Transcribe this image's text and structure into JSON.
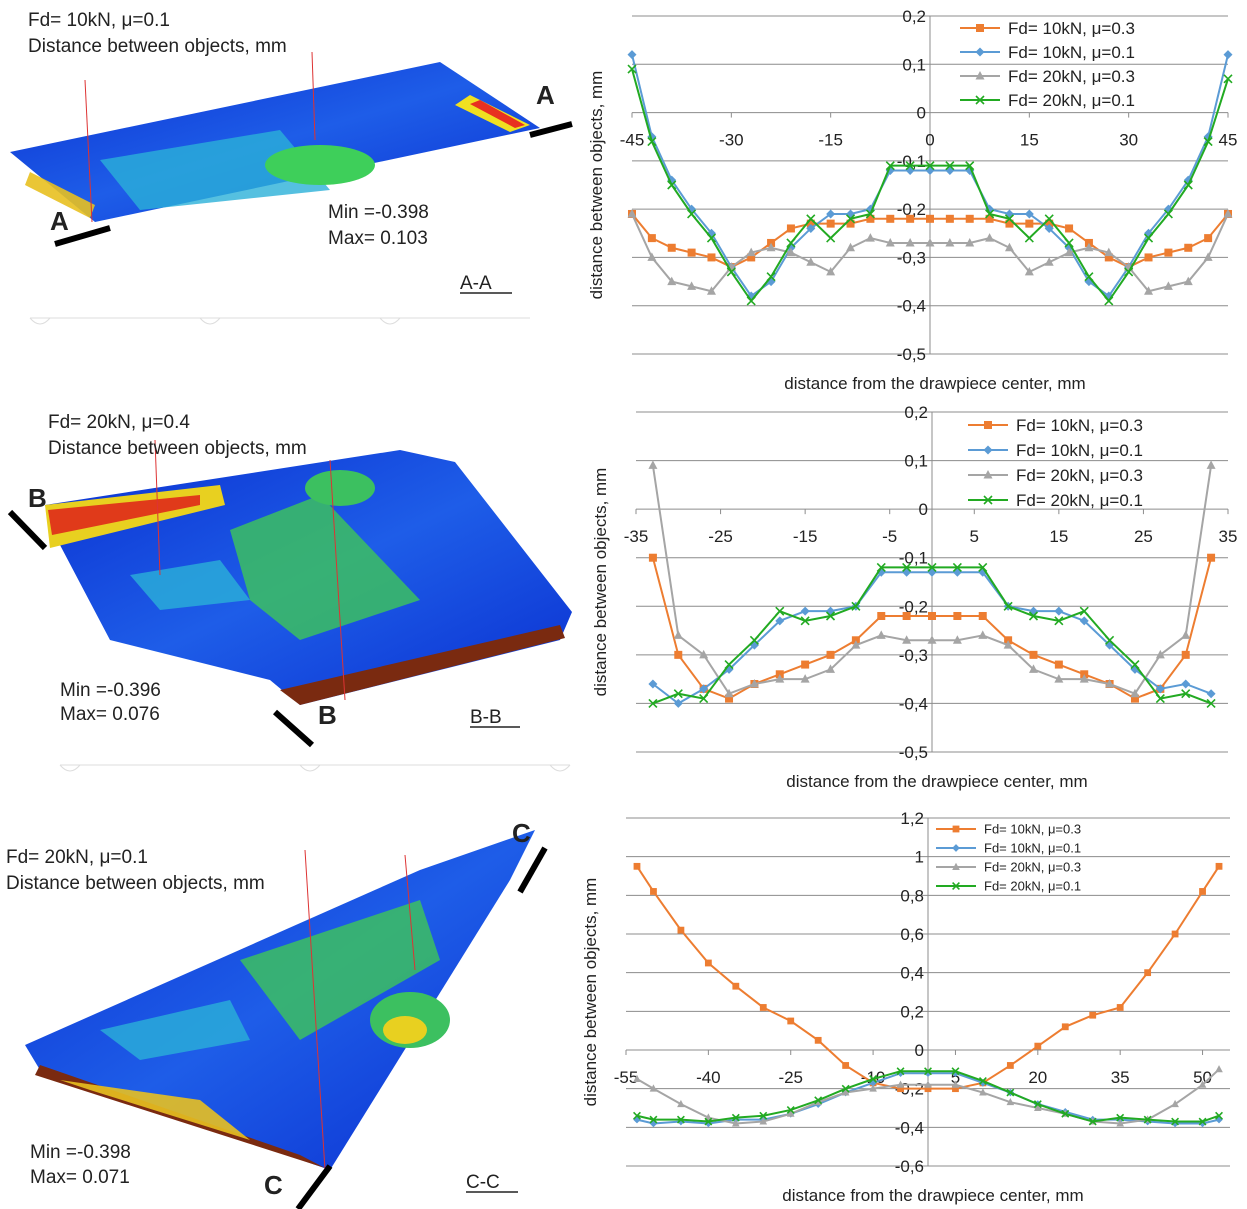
{
  "panels": [
    {
      "lines": [
        "Fd= 10kN, μ=0.1",
        "Distance between objects, mm"
      ],
      "min": "Min =-0.398",
      "max": "Max= 0.103",
      "section": "A-A",
      "cut": "A"
    },
    {
      "lines": [
        "Fd= 20kN, μ=0.4",
        "Distance between objects, mm"
      ],
      "min": "Min =-0.396",
      "max": "Max= 0.076",
      "section": "B-B",
      "cut": "B"
    },
    {
      "lines": [
        "Fd= 20kN, μ=0.1",
        "Distance between objects, mm"
      ],
      "min": "Min =-0.398",
      "max": "Max= 0.071",
      "section": "C-C",
      "cut": "C"
    }
  ],
  "chart_data": [
    {
      "type": "line",
      "xlabel": "distance from the drawpiece center, mm",
      "ylabel": "distance between objects, mm",
      "xlim": [
        -45,
        45
      ],
      "xticks": [
        -45,
        -30,
        -15,
        0,
        15,
        30,
        45
      ],
      "ylim": [
        -0.5,
        0.2
      ],
      "yticks": [
        {
          "value": 0.2,
          "label": "0,2"
        },
        {
          "value": 0.1,
          "label": "0,1"
        },
        0,
        {
          "value": -0.1,
          "label": "-0,1"
        },
        {
          "value": -0.2,
          "label": "-0,2"
        },
        {
          "value": -0.3,
          "label": "-0,3"
        },
        {
          "value": -0.4,
          "label": "-0,4"
        },
        {
          "value": -0.5,
          "label": "-0,5"
        }
      ],
      "grid": true,
      "legend": "upper right",
      "x": [
        -45,
        -42,
        -39,
        -36,
        -33,
        -30,
        -27,
        -24,
        -21,
        -18,
        -15,
        -12,
        -9,
        -6,
        -3,
        0,
        3,
        6,
        9,
        12,
        15,
        18,
        21,
        24,
        27,
        30,
        33,
        36,
        39,
        42,
        45
      ],
      "series": [
        {
          "name": "Fd= 10kN, μ=0.3",
          "color": "#ed7d31",
          "marker": "square",
          "values": [
            -0.21,
            -0.26,
            -0.28,
            -0.29,
            -0.3,
            -0.32,
            -0.3,
            -0.27,
            -0.24,
            -0.23,
            -0.23,
            -0.23,
            -0.22,
            -0.22,
            -0.22,
            -0.22,
            -0.22,
            -0.22,
            -0.22,
            -0.23,
            -0.23,
            -0.23,
            -0.24,
            -0.27,
            -0.3,
            -0.32,
            -0.3,
            -0.29,
            -0.28,
            -0.26,
            -0.21
          ]
        },
        {
          "name": "Fd= 10kN, μ=0.1",
          "color": "#5b9bd5",
          "marker": "diamond",
          "values": [
            0.12,
            -0.05,
            -0.14,
            -0.2,
            -0.25,
            -0.32,
            -0.38,
            -0.35,
            -0.28,
            -0.24,
            -0.21,
            -0.21,
            -0.2,
            -0.12,
            -0.12,
            -0.12,
            -0.12,
            -0.12,
            -0.2,
            -0.21,
            -0.21,
            -0.24,
            -0.28,
            -0.35,
            -0.38,
            -0.32,
            -0.25,
            -0.2,
            -0.14,
            -0.05,
            0.12
          ]
        },
        {
          "name": "Fd= 20kN, μ=0.3",
          "color": "#a5a5a5",
          "marker": "triangle",
          "values": [
            -0.21,
            -0.3,
            -0.35,
            -0.36,
            -0.37,
            -0.32,
            -0.29,
            -0.28,
            -0.29,
            -0.31,
            -0.33,
            -0.28,
            -0.26,
            -0.27,
            -0.27,
            -0.27,
            -0.27,
            -0.27,
            -0.26,
            -0.28,
            -0.33,
            -0.31,
            -0.29,
            -0.28,
            -0.29,
            -0.32,
            -0.37,
            -0.36,
            -0.35,
            -0.3,
            -0.21
          ]
        },
        {
          "name": "Fd= 20kN, μ=0.1",
          "color": "#22aa22",
          "marker": "x",
          "values": [
            0.09,
            -0.06,
            -0.15,
            -0.21,
            -0.26,
            -0.33,
            -0.39,
            -0.34,
            -0.27,
            -0.22,
            -0.26,
            -0.22,
            -0.21,
            -0.11,
            -0.11,
            -0.11,
            -0.11,
            -0.11,
            -0.21,
            -0.22,
            -0.26,
            -0.22,
            -0.27,
            -0.34,
            -0.39,
            -0.33,
            -0.26,
            -0.21,
            -0.15,
            -0.06,
            0.07
          ]
        }
      ]
    },
    {
      "type": "line",
      "xlabel": "distance from the drawpiece center, mm",
      "ylabel": "distance between objects, mm",
      "xlim": [
        -35,
        35
      ],
      "xticks": [
        -35,
        -25,
        -15,
        -5,
        5,
        15,
        25,
        35
      ],
      "ylim": [
        -0.5,
        0.2
      ],
      "yticks": [
        {
          "value": 0.2,
          "label": "0,2"
        },
        {
          "value": 0.1,
          "label": "0,1"
        },
        0,
        {
          "value": -0.1,
          "label": "-0,1"
        },
        {
          "value": -0.2,
          "label": "-0,2"
        },
        {
          "value": -0.3,
          "label": "-0,3"
        },
        {
          "value": -0.4,
          "label": "-0,4"
        },
        {
          "value": -0.5,
          "label": "-0,5"
        }
      ],
      "grid": true,
      "legend": "upper right",
      "x": [
        -33,
        -30,
        -27,
        -24,
        -21,
        -18,
        -15,
        -12,
        -9,
        -6,
        -3,
        0,
        3,
        6,
        9,
        12,
        15,
        18,
        21,
        24,
        27,
        30,
        33
      ],
      "series": [
        {
          "name": "Fd= 10kN, μ=0.3",
          "color": "#ed7d31",
          "marker": "square",
          "values": [
            -0.1,
            -0.3,
            -0.37,
            -0.39,
            -0.36,
            -0.34,
            -0.32,
            -0.3,
            -0.27,
            -0.22,
            -0.22,
            -0.22,
            -0.22,
            -0.22,
            -0.27,
            -0.3,
            -0.32,
            -0.34,
            -0.36,
            -0.39,
            -0.37,
            -0.3,
            -0.1
          ]
        },
        {
          "name": "Fd= 10kN, μ=0.1",
          "color": "#5b9bd5",
          "marker": "diamond",
          "values": [
            -0.36,
            -0.4,
            -0.37,
            -0.33,
            -0.28,
            -0.23,
            -0.21,
            -0.21,
            -0.2,
            -0.13,
            -0.13,
            -0.13,
            -0.13,
            -0.13,
            -0.2,
            -0.21,
            -0.21,
            -0.23,
            -0.28,
            -0.33,
            -0.37,
            -0.36,
            -0.38
          ]
        },
        {
          "name": "Fd= 20kN, μ=0.3",
          "color": "#a5a5a5",
          "marker": "triangle",
          "values": [
            0.09,
            -0.26,
            -0.3,
            -0.38,
            -0.36,
            -0.35,
            -0.35,
            -0.33,
            -0.28,
            -0.26,
            -0.27,
            -0.27,
            -0.27,
            -0.26,
            -0.28,
            -0.33,
            -0.35,
            -0.35,
            -0.36,
            -0.38,
            -0.3,
            -0.26,
            0.09
          ]
        },
        {
          "name": "Fd= 20kN, μ=0.1",
          "color": "#22aa22",
          "marker": "x",
          "values": [
            -0.4,
            -0.38,
            -0.39,
            -0.32,
            -0.27,
            -0.21,
            -0.23,
            -0.22,
            -0.2,
            -0.12,
            -0.12,
            -0.12,
            -0.12,
            -0.12,
            -0.2,
            -0.22,
            -0.23,
            -0.21,
            -0.27,
            -0.32,
            -0.39,
            -0.38,
            -0.4
          ]
        }
      ]
    },
    {
      "type": "line",
      "xlabel": "distance from the drawpiece center, mm",
      "ylabel": "distance between objects, mm",
      "xlim": [
        -55,
        55
      ],
      "xticks": [
        -55,
        -40,
        -25,
        -10,
        5,
        20,
        35,
        50
      ],
      "ylim": [
        -0.6,
        1.2
      ],
      "yticks": [
        {
          "value": 1.2,
          "label": "1,2"
        },
        1,
        {
          "value": 0.8,
          "label": "0,8"
        },
        {
          "value": 0.6,
          "label": "0,6"
        },
        {
          "value": 0.4,
          "label": "0,4"
        },
        {
          "value": 0.2,
          "label": "0,2"
        },
        0,
        {
          "value": -0.2,
          "label": "-0,2"
        },
        {
          "value": -0.4,
          "label": "-0,4"
        },
        {
          "value": -0.6,
          "label": "-0,6"
        }
      ],
      "grid": true,
      "legend": "upper right",
      "x": [
        -53,
        -50,
        -45,
        -40,
        -35,
        -30,
        -25,
        -20,
        -15,
        -10,
        -5,
        0,
        5,
        10,
        15,
        20,
        25,
        30,
        35,
        40,
        45,
        50,
        53
      ],
      "series": [
        {
          "name": "Fd= 10kN, μ=0.3",
          "color": "#ed7d31",
          "marker": "square",
          "values": [
            0.95,
            0.82,
            0.62,
            0.45,
            0.33,
            0.22,
            0.15,
            0.05,
            -0.08,
            -0.17,
            -0.2,
            -0.2,
            -0.2,
            -0.17,
            -0.08,
            0.02,
            0.12,
            0.18,
            0.22,
            0.4,
            0.6,
            0.82,
            0.95
          ]
        },
        {
          "name": "Fd= 10kN, μ=0.1",
          "color": "#5b9bd5",
          "marker": "diamond",
          "values": [
            -0.36,
            -0.38,
            -0.37,
            -0.38,
            -0.36,
            -0.36,
            -0.33,
            -0.28,
            -0.22,
            -0.17,
            -0.12,
            -0.12,
            -0.12,
            -0.17,
            -0.22,
            -0.28,
            -0.32,
            -0.36,
            -0.36,
            -0.37,
            -0.38,
            -0.38,
            -0.36
          ]
        },
        {
          "name": "Fd= 20kN, μ=0.3",
          "color": "#a5a5a5",
          "marker": "triangle",
          "values": [
            -0.15,
            -0.2,
            -0.28,
            -0.35,
            -0.38,
            -0.37,
            -0.33,
            -0.27,
            -0.22,
            -0.2,
            -0.18,
            -0.18,
            -0.18,
            -0.22,
            -0.27,
            -0.3,
            -0.33,
            -0.37,
            -0.38,
            -0.36,
            -0.28,
            -0.18,
            -0.1
          ]
        },
        {
          "name": "Fd= 20kN, μ=0.1",
          "color": "#22aa22",
          "marker": "x",
          "values": [
            -0.34,
            -0.36,
            -0.36,
            -0.37,
            -0.35,
            -0.34,
            -0.31,
            -0.26,
            -0.2,
            -0.15,
            -0.11,
            -0.11,
            -0.11,
            -0.16,
            -0.22,
            -0.28,
            -0.33,
            -0.37,
            -0.35,
            -0.36,
            -0.37,
            -0.37,
            -0.34
          ]
        }
      ]
    }
  ]
}
